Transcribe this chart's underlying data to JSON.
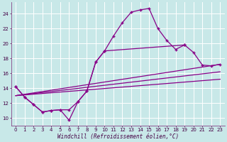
{
  "xlabel": "Windchill (Refroidissement éolien,°C)",
  "bg_color": "#c8e8e8",
  "grid_color": "#ffffff",
  "line_color": "#880088",
  "xlim": [
    -0.5,
    23.5
  ],
  "ylim": [
    9.0,
    25.5
  ],
  "xticks": [
    0,
    1,
    2,
    3,
    4,
    5,
    6,
    7,
    8,
    9,
    10,
    11,
    12,
    13,
    14,
    15,
    16,
    17,
    18,
    19,
    20,
    21,
    22,
    23
  ],
  "yticks": [
    10,
    12,
    14,
    16,
    18,
    20,
    22,
    24
  ],
  "s1x": [
    0,
    1,
    2,
    3,
    4,
    5,
    6,
    7,
    8,
    9,
    10,
    11,
    12,
    13,
    14,
    15,
    16,
    17,
    18,
    19
  ],
  "s1y": [
    14.2,
    12.8,
    11.8,
    10.8,
    11.0,
    11.1,
    11.1,
    12.2,
    13.6,
    17.5,
    19.0,
    21.0,
    22.8,
    24.2,
    24.5,
    24.7,
    22.0,
    20.4,
    19.2,
    19.8
  ],
  "s2x": [
    0,
    1,
    2,
    3,
    4,
    5,
    6,
    7,
    8,
    9,
    10,
    19,
    20,
    21,
    22,
    23
  ],
  "s2y": [
    14.2,
    12.8,
    11.8,
    10.8,
    11.0,
    11.1,
    9.7,
    12.2,
    13.6,
    17.5,
    19.0,
    19.8,
    18.8,
    17.1,
    17.0,
    17.2
  ],
  "trend1x": [
    0,
    23
  ],
  "trend1y": [
    13.0,
    17.2
  ],
  "trend2x": [
    0,
    23
  ],
  "trend2y": [
    13.0,
    16.2
  ],
  "trend3x": [
    0,
    23
  ],
  "trend3y": [
    13.0,
    15.2
  ]
}
